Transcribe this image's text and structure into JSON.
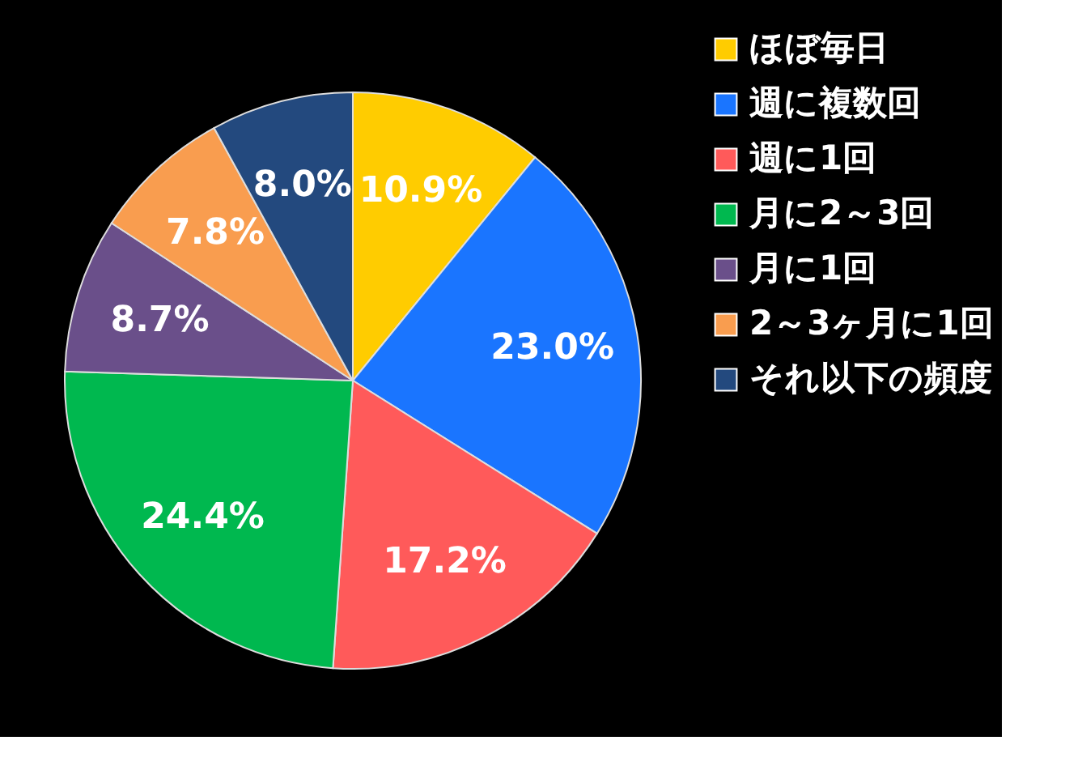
{
  "chart_data": {
    "type": "pie",
    "categories": [
      "ほぼ毎日",
      "週に複数回",
      "週に1回",
      "月に2～3回",
      "月に1回",
      "2～3ヶ月に1回",
      "それ以下の頻度"
    ],
    "values": [
      10.9,
      23.0,
      17.2,
      24.4,
      8.7,
      7.8,
      8.0
    ],
    "colors": [
      "#ffcc00",
      "#1a75ff",
      "#ff5a5a",
      "#00b84f",
      "#6a4f8a",
      "#f99d4f",
      "#23497e"
    ],
    "value_labels": [
      "10.9%",
      "23.0%",
      "17.2%",
      "24.4%",
      "8.7%",
      "7.8%",
      "8.0%"
    ],
    "legend": "right"
  }
}
